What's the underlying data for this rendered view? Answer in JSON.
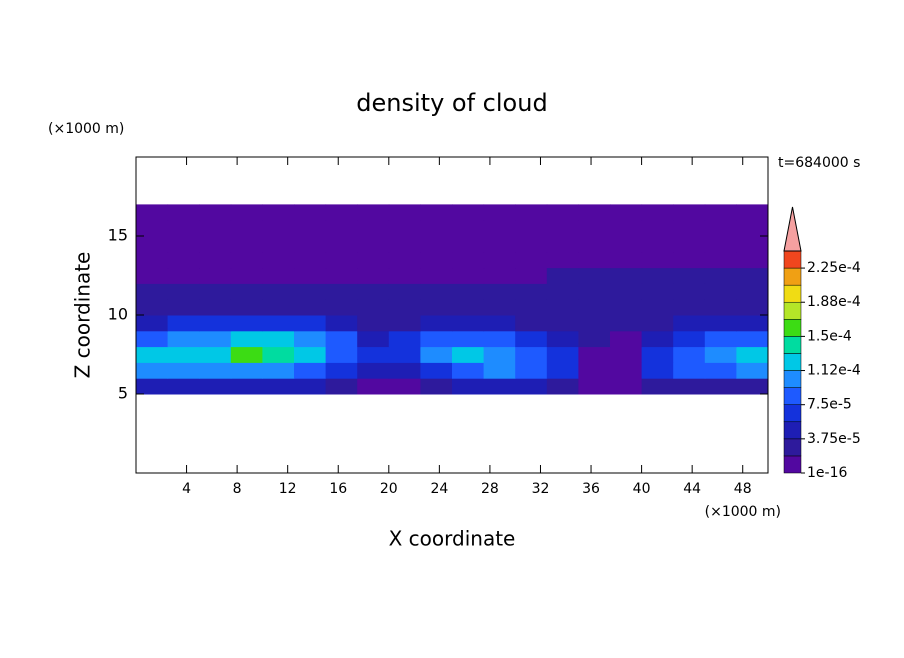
{
  "chart_data": {
    "type": "contour",
    "title": "density of cloud",
    "time_label": "t=684000 s",
    "x_label": "X coordinate",
    "y_label": "Z coordinate",
    "x_unit": "(×1000 m)",
    "y_unit": "(×1000 m)",
    "xlim": [
      0,
      50
    ],
    "ylim": [
      0,
      20
    ],
    "xticks": [
      4,
      8,
      12,
      16,
      20,
      24,
      28,
      32,
      36,
      40,
      44,
      48
    ],
    "yticks": [
      5,
      10,
      15
    ],
    "x": [
      1.25,
      3.75,
      6.25,
      8.75,
      11.25,
      13.75,
      16.25,
      18.75,
      21.25,
      23.75,
      26.25,
      28.75,
      31.25,
      33.75,
      36.25,
      38.75,
      41.25,
      43.75,
      46.25,
      48.75
    ],
    "y": [
      5.5,
      6.5,
      7.5,
      8.5,
      9.5,
      10.5,
      11.5,
      12.5,
      13.5,
      14.5,
      15.5,
      16.5
    ],
    "z": [
      [
        4e-05,
        4e-05,
        5e-05,
        5e-05,
        4.5e-05,
        4e-05,
        3e-05,
        1e-05,
        1e-05,
        3e-05,
        4e-05,
        4e-05,
        4e-05,
        3e-05,
        5e-06,
        5e-06,
        3e-05,
        3e-05,
        3e-05,
        3e-05
      ],
      [
        0.00011,
        0.0001,
        0.000105,
        0.00011,
        0.0001,
        9e-05,
        7e-05,
        5e-05,
        5e-05,
        7e-05,
        9e-05,
        9.5e-05,
        8.5e-05,
        7e-05,
        1e-05,
        1e-05,
        7e-05,
        8e-05,
        9e-05,
        0.0001
      ],
      [
        0.00012,
        0.000115,
        0.00013,
        0.00015,
        0.000145,
        0.000125,
        9e-05,
        6e-05,
        7e-05,
        0.00011,
        0.00012,
        0.000105,
        9e-05,
        6e-05,
        1e-05,
        1e-05,
        6e-05,
        9e-05,
        0.0001,
        0.000115
      ],
      [
        9e-05,
        0.0001,
        0.00011,
        0.00012,
        0.00012,
        0.0001,
        8e-05,
        5e-05,
        6e-05,
        8e-05,
        9e-05,
        8e-05,
        6e-05,
        4e-05,
        2e-05,
        1.5e-05,
        5e-05,
        7e-05,
        8e-05,
        9e-05
      ],
      [
        5e-05,
        6e-05,
        6.5e-05,
        7e-05,
        7e-05,
        6e-05,
        5e-05,
        3.5e-05,
        3e-05,
        4e-05,
        5e-05,
        4.5e-05,
        3.5e-05,
        3e-05,
        2.5e-05,
        2.5e-05,
        3e-05,
        4e-05,
        4.5e-05,
        4e-05
      ],
      [
        3e-05,
        3e-05,
        3e-05,
        3e-05,
        3e-05,
        3e-05,
        3e-05,
        2.5e-05,
        2.5e-05,
        2.5e-05,
        2.5e-05,
        2.5e-05,
        2.5e-05,
        2.5e-05,
        2.5e-05,
        2.8e-05,
        2.8e-05,
        2.8e-05,
        2.8e-05,
        2.8e-05
      ],
      [
        2.2e-05,
        2.2e-05,
        2.2e-05,
        2.2e-05,
        2.2e-05,
        2.2e-05,
        2.2e-05,
        2.2e-05,
        2.2e-05,
        2.2e-05,
        2.2e-05,
        2.2e-05,
        2.2e-05,
        2.5e-05,
        2.5e-05,
        2.5e-05,
        2.5e-05,
        2.5e-05,
        2.5e-05,
        2.5e-05
      ],
      [
        1e-05,
        1e-05,
        1e-05,
        1e-05,
        1e-05,
        1e-05,
        1e-05,
        1e-05,
        1e-05,
        1e-05,
        1e-05,
        1e-05,
        1e-05,
        2e-05,
        2e-05,
        2e-05,
        2e-05,
        2e-05,
        2e-05,
        2e-05
      ],
      [
        5e-06,
        5e-06,
        5e-06,
        5e-06,
        5e-06,
        5e-06,
        5e-06,
        5e-06,
        5e-06,
        5e-06,
        5e-06,
        5e-06,
        5e-06,
        5e-06,
        5e-06,
        5e-06,
        5e-06,
        5e-06,
        5e-06,
        5e-06
      ],
      [
        3e-06,
        3e-06,
        3e-06,
        3e-06,
        3e-06,
        3e-06,
        3e-06,
        3e-06,
        3e-06,
        3e-06,
        3e-06,
        3e-06,
        3e-06,
        3e-06,
        3e-06,
        3e-06,
        3e-06,
        3e-06,
        3e-06,
        3e-06
      ],
      [
        2e-06,
        2e-06,
        2e-06,
        2e-06,
        2e-06,
        2e-06,
        2e-06,
        2e-06,
        2e-06,
        2e-06,
        2e-06,
        2e-06,
        2e-06,
        2e-06,
        2e-06,
        2e-06,
        2e-06,
        2e-06,
        2e-06,
        2e-06
      ],
      [
        1e-07,
        1e-07,
        1e-07,
        1e-07,
        1e-07,
        1e-07,
        1e-07,
        1e-07,
        1e-07,
        1e-07,
        1e-07,
        1e-07,
        1e-07,
        1e-07,
        1e-07,
        1e-07,
        1e-07,
        1e-07,
        1e-07,
        1e-07
      ]
    ],
    "levels": [
      1e-16,
      1.875e-05,
      3.75e-05,
      5.625e-05,
      7.5e-05,
      9.375e-05,
      0.0001125,
      0.00013125,
      0.00015,
      0.00016875,
      0.0001875,
      0.00020625,
      0.000225,
      0.00024375
    ],
    "colors": [
      "#5208a0",
      "#2e1a9c",
      "#1e1eb4",
      "#1432dc",
      "#1e5aff",
      "#1e8cff",
      "#00c8e6",
      "#00dca0",
      "#3cdc14",
      "#b4e628",
      "#f0dc14",
      "#f0a014",
      "#f0461e"
    ],
    "extend_color": "#f5a0a0",
    "colorbar_ticks": [
      {
        "value": 1e-16,
        "label": "1e-16"
      },
      {
        "value": 3.75e-05,
        "label": "3.75e-5"
      },
      {
        "value": 7.5e-05,
        "label": "7.5e-5"
      },
      {
        "value": 0.0001125,
        "label": "1.12e-4"
      },
      {
        "value": 0.00015,
        "label": "1.5e-4"
      },
      {
        "value": 0.0001875,
        "label": "1.88e-4"
      },
      {
        "value": 0.000225,
        "label": "2.25e-4"
      }
    ]
  }
}
